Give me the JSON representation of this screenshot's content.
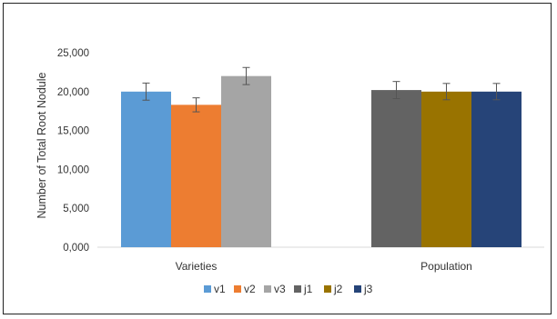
{
  "chart_data": {
    "type": "bar",
    "ylabel": "Number of Total Root Nodule",
    "ylim": [
      0,
      25000
    ],
    "yticks": [
      "0,000",
      "5,000",
      "10,000",
      "15,000",
      "20,000",
      "25,000"
    ],
    "ytick_values": [
      0,
      5000,
      10000,
      15000,
      20000,
      25000
    ],
    "grid": false,
    "legend_position": "bottom",
    "groups": [
      {
        "label": "Varieties",
        "bars": [
          {
            "name": "v1",
            "value": 20000,
            "error": 1100,
            "color": "#5B9BD5"
          },
          {
            "name": "v2",
            "value": 18300,
            "error": 900,
            "color": "#ED7D31"
          },
          {
            "name": "v3",
            "value": 22000,
            "error": 1100,
            "color": "#A5A5A5"
          }
        ]
      },
      {
        "label": "Population",
        "bars": [
          {
            "name": "j1",
            "value": 20200,
            "error": 1100,
            "color": "#636363"
          },
          {
            "name": "j2",
            "value": 20000,
            "error": 1050,
            "color": "#997300"
          },
          {
            "name": "j3",
            "value": 20000,
            "error": 1050,
            "color": "#264478"
          }
        ]
      }
    ],
    "legend": [
      {
        "name": "v1",
        "color": "#5B9BD5"
      },
      {
        "name": "v2",
        "color": "#ED7D31"
      },
      {
        "name": "v3",
        "color": "#A5A5A5"
      },
      {
        "name": "j1",
        "color": "#636363"
      },
      {
        "name": "j2",
        "color": "#997300"
      },
      {
        "name": "j3",
        "color": "#264478"
      }
    ]
  }
}
